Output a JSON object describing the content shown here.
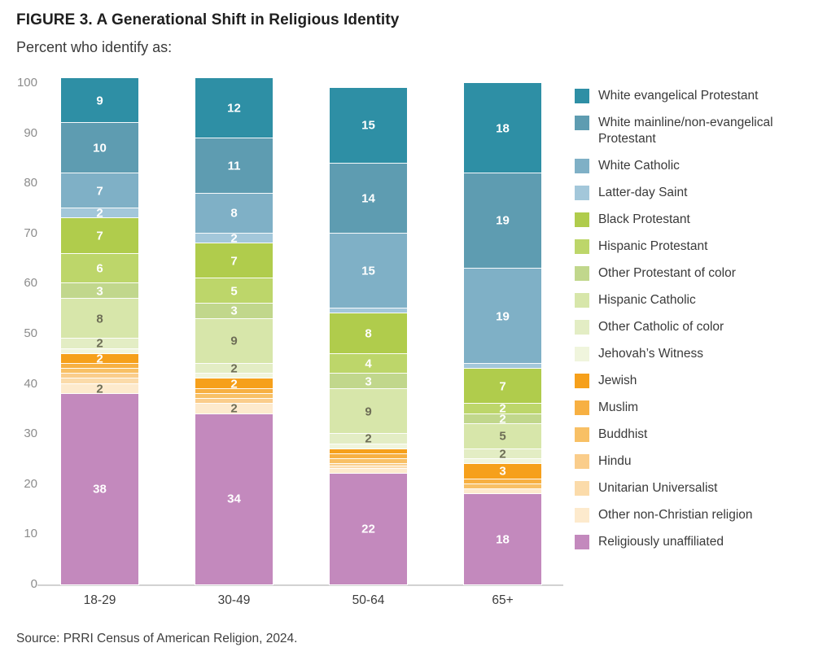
{
  "header": {
    "title": "FIGURE 3. A Generational Shift in Religious Identity",
    "subtitle": "Percent who identify as:"
  },
  "source_note": "Source: PRRI Census of American Religion, 2024.",
  "chart_data": {
    "type": "bar",
    "stacked": true,
    "title": "FIGURE 3. A Generational Shift in Religious Identity",
    "subtitle": "Percent who identify as:",
    "xlabel": "",
    "ylabel": "Percent",
    "categories": [
      "18-29",
      "30-49",
      "50-64",
      "65+"
    ],
    "yticks": [
      0,
      10,
      20,
      30,
      40,
      50,
      60,
      70,
      80,
      90,
      100
    ],
    "ylim": [
      0,
      101
    ],
    "grid": false,
    "legend_position": "right",
    "label_min_value": 2,
    "series": [
      {
        "name": "White evangelical Protestant",
        "color": "#2e8fa5",
        "label_color": "#ffffff",
        "values": [
          9,
          12,
          15,
          18
        ]
      },
      {
        "name": "White mainline/non-evangelical Protestant",
        "color": "#5e9cb1",
        "label_color": "#ffffff",
        "values": [
          10,
          11,
          14,
          19
        ]
      },
      {
        "name": "White Catholic",
        "color": "#7fb0c6",
        "label_color": "#ffffff",
        "values": [
          7,
          8,
          15,
          19
        ]
      },
      {
        "name": "Latter-day Saint",
        "color": "#a3c7da",
        "label_color": "#ffffff",
        "values": [
          2,
          2,
          1,
          1
        ]
      },
      {
        "name": "Black Protestant",
        "color": "#b0cc4c",
        "label_color": "#ffffff",
        "values": [
          7,
          7,
          8,
          7
        ]
      },
      {
        "name": "Hispanic Protestant",
        "color": "#bdd66a",
        "label_color": "#ffffff",
        "values": [
          6,
          5,
          4,
          2
        ]
      },
      {
        "name": "Other Protestant of color",
        "color": "#c1d78c",
        "label_color": "#ffffff",
        "values": [
          3,
          3,
          3,
          2
        ]
      },
      {
        "name": "Hispanic Catholic",
        "color": "#d7e6aa",
        "label_color": "#6e6e57",
        "values": [
          8,
          9,
          9,
          5
        ]
      },
      {
        "name": "Other Catholic of color",
        "color": "#e3edc4",
        "label_color": "#6e6e57",
        "values": [
          2,
          2,
          2,
          2
        ]
      },
      {
        "name": "Jehovah’s Witness",
        "color": "#f0f5dd",
        "label_color": "#6e6e57",
        "values": [
          1,
          1,
          1,
          1
        ]
      },
      {
        "name": "Jewish",
        "color": "#f6a01b",
        "label_color": "#ffffff",
        "values": [
          2,
          2,
          1,
          3
        ]
      },
      {
        "name": "Muslim",
        "color": "#f7b042",
        "label_color": "#ffffff",
        "values": [
          1,
          1,
          1,
          1
        ]
      },
      {
        "name": "Buddhist",
        "color": "#f8c065",
        "label_color": "#ffffff",
        "values": [
          1,
          1,
          1,
          1
        ]
      },
      {
        "name": "Hindu",
        "color": "#facd8b",
        "label_color": "#ffffff",
        "values": [
          1,
          1,
          0.5,
          0
        ]
      },
      {
        "name": "Unitarian Universalist",
        "color": "#fbdbaa",
        "label_color": "#6e6e57",
        "values": [
          1,
          0,
          0.5,
          0
        ]
      },
      {
        "name": "Other non-Christian religion",
        "color": "#fdeacd",
        "label_color": "#6e6e57",
        "values": [
          2,
          2,
          1,
          1
        ]
      },
      {
        "name": "Religiously unaffiliated",
        "color": "#c389bd",
        "label_color": "#ffffff",
        "values": [
          38,
          34,
          22,
          18
        ]
      }
    ]
  }
}
